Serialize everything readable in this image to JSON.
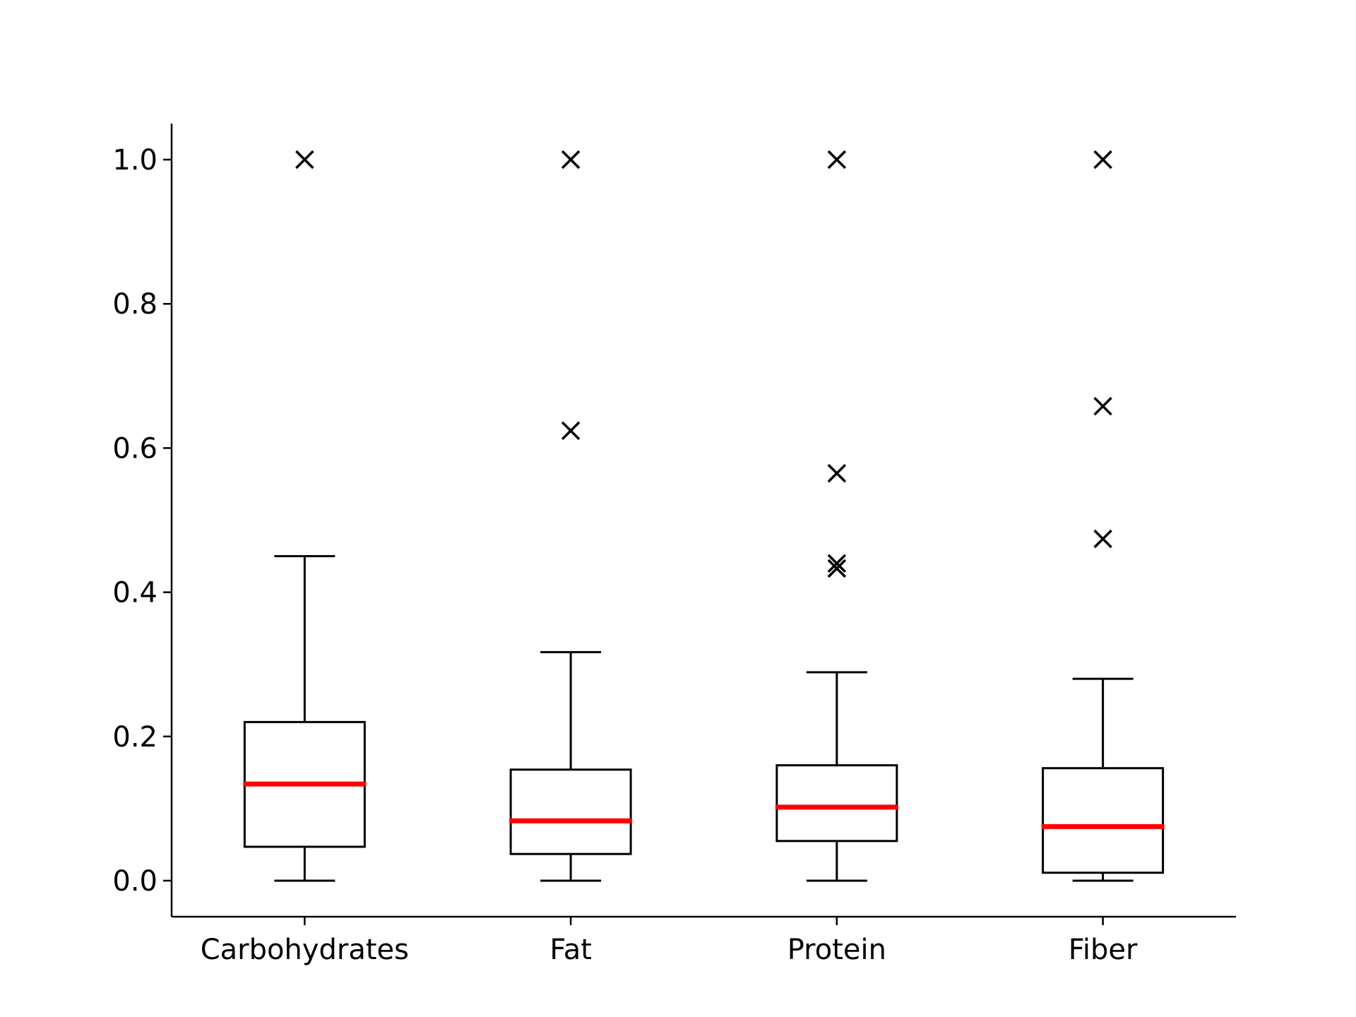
{
  "chart_data": {
    "type": "box",
    "categories": [
      "Carbohydrates",
      "Fat",
      "Protein",
      "Fiber"
    ],
    "title": "",
    "xlabel": "",
    "ylabel": "",
    "ylim": [
      -0.05,
      1.05
    ],
    "yticks": [
      0.0,
      0.2,
      0.4,
      0.6,
      0.8,
      1.0
    ],
    "ytick_labels": [
      "0.0",
      "0.2",
      "0.4",
      "0.6",
      "0.8",
      "1.0"
    ],
    "grid": false,
    "median_color": "#ff0000",
    "box_color": "#000000",
    "flier_marker": "x",
    "boxes": [
      {
        "category": "Carbohydrates",
        "whisker_low": 0.0,
        "q1": 0.047,
        "median": 0.134,
        "q3": 0.22,
        "whisker_high": 0.45,
        "fliers": [
          1.0
        ]
      },
      {
        "category": "Fat",
        "whisker_low": 0.0,
        "q1": 0.037,
        "median": 0.083,
        "q3": 0.154,
        "whisker_high": 0.317,
        "fliers": [
          0.624,
          1.0
        ]
      },
      {
        "category": "Protein",
        "whisker_low": 0.0,
        "q1": 0.055,
        "median": 0.102,
        "q3": 0.16,
        "whisker_high": 0.289,
        "fliers": [
          0.433,
          0.44,
          0.565,
          1.0
        ]
      },
      {
        "category": "Fiber",
        "whisker_low": 0.0,
        "q1": 0.011,
        "median": 0.075,
        "q3": 0.156,
        "whisker_high": 0.28,
        "fliers": [
          0.474,
          0.658,
          1.0
        ]
      }
    ]
  }
}
